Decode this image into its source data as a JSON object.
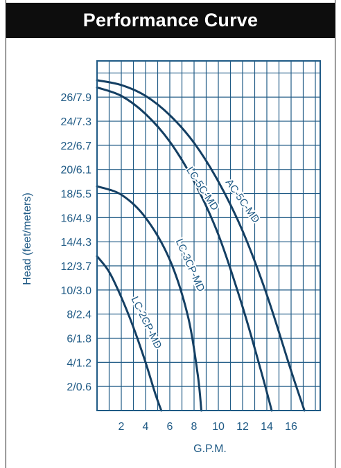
{
  "chart_data": {
    "type": "line",
    "title": "Performance Curve",
    "xlabel": "G.P.M.",
    "ylabel": "Head (feet/meters)",
    "xlim": [
      0,
      18.4
    ],
    "ylim": [
      0,
      29
    ],
    "x_ticks": [
      2,
      4,
      6,
      8,
      10,
      12,
      14,
      16
    ],
    "y_ticks": [
      {
        "value": 2,
        "label": "2/0.6"
      },
      {
        "value": 4,
        "label": "4/1.2"
      },
      {
        "value": 6,
        "label": "6/1.8"
      },
      {
        "value": 8,
        "label": "8/2.4"
      },
      {
        "value": 10,
        "label": "10/3.0"
      },
      {
        "value": 12,
        "label": "12/3.7"
      },
      {
        "value": 14,
        "label": "14/4.3"
      },
      {
        "value": 16,
        "label": "16/4.9"
      },
      {
        "value": 18,
        "label": "18/5.5"
      },
      {
        "value": 20,
        "label": "20/6.1"
      },
      {
        "value": 22,
        "label": "22/6.7"
      },
      {
        "value": 24,
        "label": "24/7.3"
      },
      {
        "value": 26,
        "label": "26/7.9"
      }
    ],
    "grid": true,
    "series": [
      {
        "name": "AC-5C-MD",
        "x": [
          0,
          2,
          4,
          6,
          8,
          10,
          12,
          14,
          16,
          17.1
        ],
        "y": [
          27.4,
          27.0,
          26.1,
          24.5,
          22.2,
          19.0,
          14.9,
          9.6,
          3.3,
          0
        ]
      },
      {
        "name": "LC-5C-MD",
        "x": [
          0,
          2,
          4,
          6,
          8,
          10,
          12,
          13.6,
          14.4
        ],
        "y": [
          26.8,
          26.1,
          24.6,
          22.3,
          19.0,
          14.6,
          8.6,
          3.0,
          0
        ]
      },
      {
        "name": "LC-3CP-MD",
        "x": [
          0,
          2,
          4,
          6,
          7.5,
          8.3,
          8.6
        ],
        "y": [
          18.6,
          17.9,
          16.0,
          12.5,
          7.8,
          3.0,
          0
        ]
      },
      {
        "name": "LC-2CP-MD",
        "x": [
          0,
          1,
          2,
          3,
          4,
          4.8,
          5.3
        ],
        "y": [
          12.8,
          11.5,
          9.4,
          6.9,
          4.0,
          1.4,
          0
        ]
      }
    ]
  }
}
